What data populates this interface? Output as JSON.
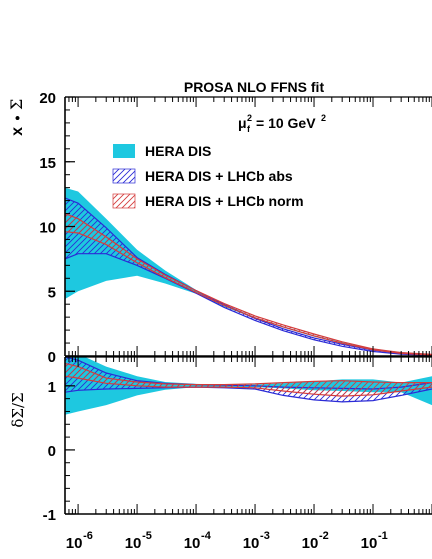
{
  "chart_data": {
    "type": "area",
    "title": "PROSA NLO FFNS fit",
    "annotation": {
      "base": "μ",
      "sup": "2",
      "sub": "f",
      "rest": "= 10 GeV",
      "rest_sup": "2"
    },
    "x_scale": "log",
    "xlim": [
      6e-07,
      1.0
    ],
    "x_ticks": [
      {
        "value": 1e-06,
        "base": "10",
        "exp": "-6"
      },
      {
        "value": 1e-05,
        "base": "10",
        "exp": "-5"
      },
      {
        "value": 0.0001,
        "base": "10",
        "exp": "-4"
      },
      {
        "value": 0.001,
        "base": "10",
        "exp": "-3"
      },
      {
        "value": 0.01,
        "base": "10",
        "exp": "-2"
      },
      {
        "value": 0.1,
        "base": "10",
        "exp": "-1"
      }
    ],
    "top_panel": {
      "ylabel_main": "x",
      "ylabel_symbol": "Σ",
      "ylim": [
        0,
        20
      ],
      "y_ticks": [
        "0",
        "5",
        "10",
        "15",
        "20"
      ],
      "x": [
        6e-07,
        1e-06,
        3e-06,
        1e-05,
        3e-05,
        0.0001,
        0.0003,
        0.001,
        0.003,
        0.01,
        0.03,
        0.1,
        0.3,
        1.0
      ],
      "series": [
        {
          "name": "HERA DIS",
          "style": "band",
          "color": "#1ec8e0",
          "upper": [
            13.0,
            12.7,
            10.6,
            8.2,
            6.6,
            5.1,
            4.0,
            3.0,
            2.3,
            1.6,
            1.05,
            0.55,
            0.3,
            0.15
          ],
          "lower": [
            4.4,
            5.0,
            5.8,
            6.2,
            5.6,
            4.8,
            3.8,
            2.9,
            2.2,
            1.5,
            1.0,
            0.5,
            0.2,
            0.05
          ],
          "central": [
            8.0,
            8.4,
            8.2,
            7.2,
            6.1,
            4.9,
            3.9,
            2.95,
            2.25,
            1.55,
            1.02,
            0.52,
            0.25,
            0.1
          ]
        },
        {
          "name": "HERA DIS + LHCb abs",
          "style": "hatch",
          "color": "#2b2bd6",
          "upper": [
            12.2,
            11.8,
            9.9,
            7.6,
            6.3,
            5.05,
            3.95,
            2.9,
            2.1,
            1.4,
            0.9,
            0.45,
            0.22,
            0.1
          ],
          "lower": [
            7.5,
            7.9,
            7.9,
            7.0,
            6.0,
            4.85,
            3.75,
            2.75,
            1.95,
            1.25,
            0.75,
            0.35,
            0.15,
            0.05
          ]
        },
        {
          "name": "HERA DIS + LHCb norm",
          "style": "hatch",
          "color": "#d43c3c",
          "upper": [
            11.0,
            10.6,
            9.2,
            7.5,
            6.25,
            5.05,
            4.05,
            3.1,
            2.4,
            1.7,
            1.1,
            0.55,
            0.26,
            0.12
          ],
          "lower": [
            9.6,
            9.5,
            8.6,
            7.2,
            6.05,
            4.9,
            3.9,
            2.95,
            2.25,
            1.55,
            0.98,
            0.48,
            0.2,
            0.08
          ]
        }
      ]
    },
    "bottom_panel": {
      "ylabel": "δΣ/Σ",
      "ylim": [
        -1,
        1.45
      ],
      "y_ticks": [
        "-1",
        "0",
        "1"
      ],
      "x": [
        6e-07,
        1e-06,
        3e-06,
        1e-05,
        3e-05,
        0.0001,
        0.0003,
        0.001,
        0.003,
        0.01,
        0.03,
        0.1,
        0.3,
        1.0
      ],
      "series": [
        {
          "name": "HERA DIS",
          "style": "band",
          "color": "#1ec8e0",
          "upper": [
            1.55,
            1.5,
            1.3,
            1.15,
            1.06,
            1.03,
            1.02,
            1.02,
            1.04,
            1.07,
            1.1,
            1.1,
            1.05,
            1.15
          ],
          "lower": [
            0.55,
            0.6,
            0.7,
            0.85,
            0.94,
            0.98,
            0.98,
            0.98,
            0.96,
            0.93,
            0.92,
            0.9,
            0.9,
            0.7
          ]
        },
        {
          "name": "HERA DIS + LHCb abs",
          "style": "hatch",
          "color": "#2b2bd6",
          "upper": [
            1.45,
            1.4,
            1.2,
            1.08,
            1.04,
            1.02,
            1.01,
            1.0,
            0.98,
            0.97,
            0.96,
            0.95,
            0.98,
            1.05
          ],
          "lower": [
            0.9,
            0.93,
            0.95,
            0.96,
            0.97,
            0.98,
            0.97,
            0.95,
            0.85,
            0.78,
            0.75,
            0.77,
            0.85,
            0.95
          ]
        },
        {
          "name": "HERA DIS + LHCb norm",
          "style": "hatch",
          "color": "#d43c3c",
          "upper": [
            1.35,
            1.3,
            1.12,
            1.06,
            1.03,
            1.02,
            1.02,
            1.03,
            1.05,
            1.07,
            1.08,
            1.06,
            1.05,
            1.05
          ],
          "lower": [
            1.15,
            1.12,
            1.04,
            1.0,
            0.98,
            0.98,
            0.98,
            0.97,
            0.92,
            0.87,
            0.84,
            0.86,
            0.92,
            0.98
          ]
        }
      ]
    },
    "legend": {
      "position": "top-left",
      "entries": [
        "HERA DIS",
        "HERA DIS + LHCb abs",
        "HERA DIS + LHCb norm"
      ]
    }
  }
}
